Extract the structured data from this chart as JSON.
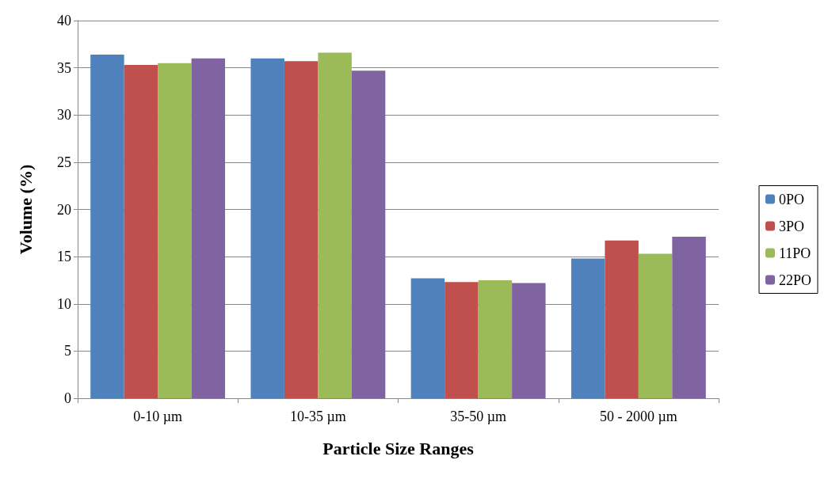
{
  "chart_data": {
    "type": "bar",
    "xlabel": "Particle Size Ranges",
    "ylabel": "Volume (%)",
    "categories": [
      "0-10 µm",
      "10-35 µm",
      "35-50 µm",
      "50 - 2000 µm"
    ],
    "series": [
      {
        "name": "0PO",
        "color": "#4f81bd",
        "values": [
          36.4,
          36.0,
          12.7,
          14.8
        ]
      },
      {
        "name": "3PO",
        "color": "#c0504d",
        "values": [
          35.3,
          35.7,
          12.3,
          16.7
        ]
      },
      {
        "name": "11PO",
        "color": "#9bbb59",
        "values": [
          35.5,
          36.6,
          12.5,
          15.3
        ]
      },
      {
        "name": "22PO",
        "color": "#8064a2",
        "values": [
          36.0,
          34.7,
          12.2,
          17.1
        ]
      }
    ],
    "ylim": [
      0,
      40
    ],
    "yticks": [
      0,
      5,
      10,
      15,
      20,
      25,
      30,
      35,
      40
    ],
    "grid": "y",
    "legend": "right"
  }
}
